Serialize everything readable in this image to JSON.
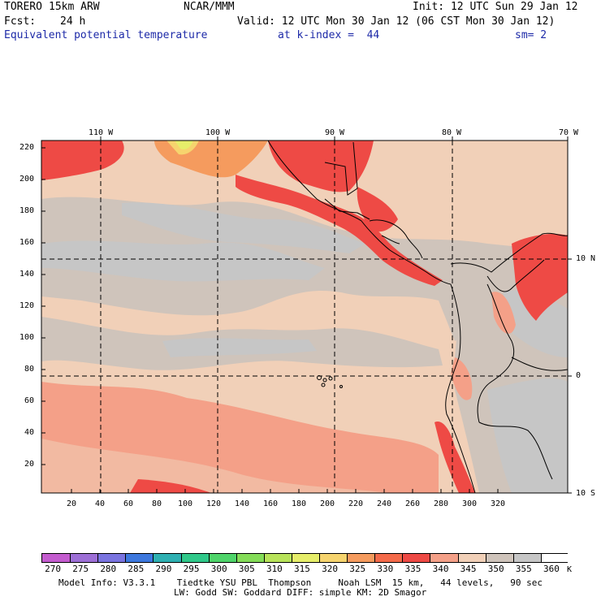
{
  "header": {
    "model": "TORERO",
    "resolution": "15km ARW",
    "center": "NCAR/MMM",
    "init": "Init: 12 UTC Sun 29 Jan 12",
    "fcst_label": "Fcst:",
    "fcst_value": "24 h",
    "valid": "Valid: 12 UTC Mon 30 Jan 12 (06 CST Mon 30 Jan 12)",
    "field": "Equivalent potential temperature",
    "level": "at k-index =  44",
    "smoothing": "sm= 2"
  },
  "axes": {
    "top_lon_labels": [
      "110 W",
      "100 W",
      "90 W",
      "80 W",
      "70 W"
    ],
    "right_lat_labels": [
      "10 N",
      "0",
      "10 S"
    ],
    "left_grid_labels": [
      "220",
      "200",
      "180",
      "160",
      "140",
      "120",
      "100",
      "80",
      "60",
      "40",
      "20"
    ],
    "bottom_grid_labels": [
      "20",
      "40",
      "60",
      "80",
      "100",
      "120",
      "140",
      "160",
      "180",
      "200",
      "220",
      "240",
      "260",
      "280",
      "300",
      "320"
    ]
  },
  "colorbar": {
    "unit": "K",
    "labels": [
      "270",
      "275",
      "280",
      "285",
      "290",
      "295",
      "300",
      "305",
      "310",
      "315",
      "320",
      "325",
      "330",
      "335",
      "340",
      "345",
      "350",
      "355",
      "360"
    ],
    "colors": [
      "#c45ccf",
      "#9d6fd6",
      "#7a74e0",
      "#3d78de",
      "#2eb0b2",
      "#30c98a",
      "#4fd46a",
      "#84dc58",
      "#b8e35a",
      "#e6ee6a",
      "#f6d46e",
      "#f59b5e",
      "#f46a4a",
      "#ee4a45",
      "#f4a088",
      "#f1d0b8",
      "#cfc4bb",
      "#c6c6c6",
      "#ffffff"
    ]
  },
  "footer": {
    "line1": "Model Info: V3.3.1    Tiedtke YSU PBL  Thompson     Noah LSM  15 km,   44 levels,   90 sec",
    "line2": "LW: Godd SW: Goddard DIFF: simple KM: 2D Smagor"
  }
}
